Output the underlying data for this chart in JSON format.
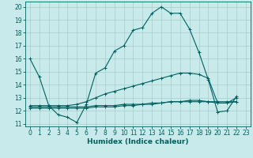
{
  "xlabel": "Humidex (Indice chaleur)",
  "bg_color": "#c8eaea",
  "grid_color": "#a8cccc",
  "line_color": "#006060",
  "xlim": [
    -0.5,
    23.5
  ],
  "ylim": [
    10.8,
    20.4
  ],
  "yticks": [
    11,
    12,
    13,
    14,
    15,
    16,
    17,
    18,
    19,
    20
  ],
  "xticks": [
    0,
    1,
    2,
    3,
    4,
    5,
    6,
    7,
    8,
    9,
    10,
    11,
    12,
    13,
    14,
    15,
    16,
    17,
    18,
    19,
    20,
    21,
    22,
    23
  ],
  "series": [
    [
      16.0,
      14.6,
      12.4,
      11.7,
      11.5,
      11.1,
      12.5,
      14.9,
      15.3,
      16.6,
      17.0,
      18.2,
      18.4,
      19.5,
      20.0,
      19.5,
      19.5,
      18.3,
      16.5,
      14.4,
      11.9,
      12.0,
      13.1,
      null
    ],
    [
      12.4,
      12.4,
      12.4,
      12.4,
      12.4,
      12.5,
      12.7,
      13.0,
      13.3,
      13.5,
      13.7,
      13.9,
      14.1,
      14.3,
      14.5,
      14.7,
      14.9,
      14.9,
      14.8,
      14.5,
      12.6,
      12.6,
      13.0,
      null
    ],
    [
      12.3,
      12.3,
      12.3,
      12.3,
      12.3,
      12.3,
      12.3,
      12.4,
      12.4,
      12.4,
      12.5,
      12.5,
      12.5,
      12.6,
      12.6,
      12.7,
      12.7,
      12.7,
      12.7,
      12.7,
      12.7,
      12.7,
      12.7,
      null
    ],
    [
      12.2,
      12.2,
      12.2,
      12.2,
      12.2,
      12.2,
      12.2,
      12.3,
      12.3,
      12.3,
      12.4,
      12.4,
      12.5,
      12.5,
      12.6,
      12.7,
      12.7,
      12.8,
      12.8,
      12.7,
      12.6,
      12.6,
      12.7,
      null
    ]
  ],
  "tick_fontsize": 5.5,
  "xlabel_fontsize": 6.5,
  "linewidth": 0.8,
  "markersize": 3.0,
  "markeredgewidth": 0.7
}
